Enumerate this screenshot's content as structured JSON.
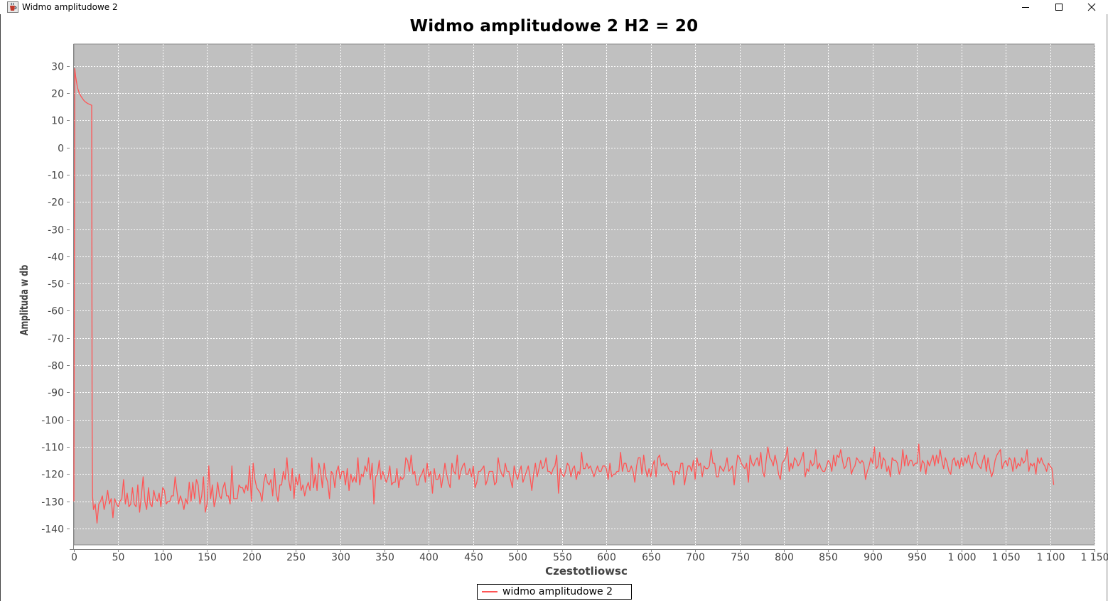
{
  "window": {
    "title": "Widmo amplitudowe 2",
    "icon": "java-cup-icon",
    "controls": [
      "minimize-icon",
      "maximize-icon",
      "close-icon"
    ]
  },
  "chart_data": {
    "type": "line",
    "title": "Widmo amplitudowe 2 H2 = 20",
    "xlabel": "Czestotliowsc",
    "ylabel": "Amplituda w db",
    "xlim": [
      0,
      1150
    ],
    "ylim": [
      -146,
      38
    ],
    "x_ticks": [
      0,
      50,
      100,
      150,
      200,
      250,
      300,
      350,
      400,
      450,
      500,
      550,
      600,
      650,
      700,
      750,
      800,
      850,
      900,
      950,
      1000,
      1050,
      1100,
      1150
    ],
    "x_tick_labels": [
      "0",
      "50",
      "100",
      "150",
      "200",
      "250",
      "300",
      "350",
      "400",
      "450",
      "500",
      "550",
      "600",
      "650",
      "700",
      "750",
      "800",
      "850",
      "900",
      "950",
      "1 000",
      "1 050",
      "1 100",
      "1 150"
    ],
    "y_ticks": [
      30,
      20,
      10,
      0,
      -10,
      -20,
      -30,
      -40,
      -50,
      -60,
      -70,
      -80,
      -90,
      -100,
      -110,
      -120,
      -130,
      -140
    ],
    "y_tick_labels": [
      "30",
      "20",
      "10",
      "0",
      "-10",
      "-20",
      "-30",
      "-40",
      "-50",
      "-60",
      "-70",
      "-80",
      "-90",
      "-100",
      "-110",
      "-120",
      "-130",
      "-140"
    ],
    "grid": true,
    "legend_position": "bottom-center",
    "plot_background": "#c0c0c0",
    "grid_color": "#ffffff",
    "series": [
      {
        "name": "widmo amplitudowe 2",
        "color": "#ff5555",
        "x": [
          0,
          1,
          2,
          3,
          4,
          6,
          8,
          10,
          12,
          14,
          16,
          18,
          20,
          20.5,
          21,
          22,
          24,
          26,
          28,
          30,
          32,
          34,
          36,
          38,
          40,
          42,
          44,
          46,
          48,
          50,
          52,
          54,
          56,
          58,
          60,
          62,
          64,
          66,
          68,
          70,
          72,
          74,
          76,
          78,
          80,
          82,
          84,
          86,
          88,
          90,
          92,
          94,
          96,
          98,
          100,
          102,
          104,
          106,
          108,
          110,
          112,
          114,
          116,
          118,
          120,
          122,
          124,
          126,
          128,
          130,
          132,
          134,
          136,
          138,
          140,
          142,
          144,
          146,
          148,
          150,
          152,
          154,
          156,
          158,
          160,
          162,
          164,
          166,
          168,
          170,
          172,
          174,
          176,
          178,
          180,
          182,
          184,
          186,
          188,
          190,
          192,
          194,
          196,
          198,
          200,
          202,
          204,
          206,
          208,
          210,
          212,
          214,
          216,
          218,
          220,
          222,
          224,
          226,
          228,
          230,
          232,
          234,
          236,
          238,
          240,
          242,
          244,
          246,
          248,
          250,
          252,
          254,
          256,
          258,
          260,
          262,
          264,
          266,
          268,
          270,
          272,
          274,
          276,
          278,
          280,
          282,
          284,
          286,
          288,
          290,
          292,
          294,
          296,
          298,
          300,
          302,
          304,
          306,
          308,
          310,
          312,
          314,
          316,
          318,
          320,
          322,
          324,
          326,
          328,
          330,
          332,
          334,
          336,
          338,
          340,
          342,
          344,
          346,
          348,
          350,
          352,
          354,
          356,
          358,
          360,
          362,
          364,
          366,
          368,
          370,
          372,
          374,
          376,
          378,
          380,
          382,
          384,
          386,
          388,
          390,
          392,
          394,
          396,
          398,
          400,
          402,
          404,
          406,
          408,
          410,
          412,
          414,
          416,
          418,
          420,
          422,
          424,
          426,
          428,
          430,
          432,
          434,
          436,
          438,
          440,
          442,
          444,
          446,
          448,
          450,
          452,
          454,
          456,
          458,
          460,
          462,
          464,
          466,
          468,
          470,
          472,
          474,
          476,
          478,
          480,
          482,
          484,
          486,
          488,
          490,
          492,
          494,
          496,
          498,
          500,
          502,
          504,
          506,
          508,
          510,
          512,
          514,
          516,
          518,
          520,
          522,
          524,
          526,
          528,
          530,
          532,
          534,
          536,
          538,
          540,
          542,
          544,
          546,
          548,
          550,
          552,
          554,
          556,
          558,
          560,
          562,
          564,
          566,
          568,
          570,
          572,
          574,
          576,
          578,
          580,
          582,
          584,
          586,
          588,
          590,
          592,
          594,
          596,
          598,
          600,
          602,
          604,
          606,
          608,
          610,
          612,
          614,
          616,
          618,
          620,
          622,
          624,
          626,
          628,
          630,
          632,
          634,
          636,
          638,
          640,
          642,
          644,
          646,
          648,
          650,
          652,
          654,
          656,
          658,
          660,
          662,
          664,
          666,
          668,
          670,
          672,
          674,
          676,
          678,
          680,
          682,
          684,
          686,
          688,
          690,
          692,
          694,
          696,
          698,
          700,
          702,
          704,
          706,
          708,
          710,
          712,
          714,
          716,
          718,
          720,
          722,
          724,
          726,
          728,
          730,
          732,
          734,
          736,
          738,
          740,
          742,
          744,
          746,
          748,
          750,
          752,
          754,
          756,
          758,
          760,
          762,
          764,
          766,
          768,
          770,
          772,
          774,
          776,
          778,
          780,
          782,
          784,
          786,
          788,
          790,
          792,
          794,
          796,
          798,
          800,
          802,
          804,
          806,
          808,
          810,
          812,
          814,
          816,
          818,
          820,
          822,
          824,
          826,
          828,
          830,
          832,
          834,
          836,
          838,
          840,
          842,
          844,
          846,
          848,
          850,
          852,
          854,
          856,
          858,
          860,
          862,
          864,
          866,
          868,
          870,
          872,
          874,
          876,
          878,
          880,
          882,
          884,
          886,
          888,
          890,
          892,
          894,
          896,
          898,
          900,
          902,
          904,
          906,
          908,
          910,
          912,
          914,
          916,
          918,
          920,
          922,
          924,
          926,
          928,
          930,
          932,
          934,
          936,
          938,
          940,
          942,
          944,
          946,
          948,
          950,
          952,
          954,
          956,
          958,
          960,
          962,
          964,
          966,
          968,
          970,
          972,
          974,
          976,
          978,
          980,
          982,
          984,
          986,
          988,
          990,
          992,
          994,
          996,
          998,
          1000,
          1002,
          1004,
          1006,
          1008,
          1010,
          1012,
          1014,
          1016,
          1018,
          1020,
          1022,
          1024,
          1026,
          1028,
          1030,
          1032,
          1034,
          1036,
          1038,
          1040,
          1042,
          1044,
          1046,
          1048,
          1050,
          1052,
          1054,
          1056,
          1058,
          1060,
          1062,
          1064,
          1066,
          1068,
          1070,
          1072,
          1074,
          1076,
          1078,
          1080,
          1082,
          1084,
          1086,
          1088,
          1090,
          1092,
          1094,
          1096,
          1098,
          1100,
          1102,
          1104
        ],
        "values": [
          -130,
          29,
          26,
          24,
          22,
          20,
          18.8,
          17.8,
          17,
          16.5,
          16.1,
          15.8,
          15.5,
          -100,
          -128,
          -133,
          -131,
          -138,
          -131,
          -130,
          -128,
          -133,
          -130,
          -126,
          -131,
          -129,
          -136,
          -129,
          -131,
          -132,
          -130,
          -129,
          -122,
          -131,
          -127,
          -132,
          -131,
          -125,
          -131,
          -132,
          -124,
          -134,
          -128,
          -121,
          -130,
          -133,
          -125,
          -131,
          -132,
          -126,
          -129,
          -130,
          -127,
          -132,
          -125,
          -126,
          -131,
          -130,
          -130,
          -128,
          -128,
          -121,
          -126,
          -131,
          -128,
          -130,
          -133,
          -129,
          -131,
          -123,
          -130,
          -123,
          -129,
          -122,
          -124,
          -131,
          -128,
          -121,
          -134,
          -131,
          -117,
          -129,
          -124,
          -132,
          -129,
          -123,
          -128,
          -129,
          -125,
          -123,
          -128,
          -128,
          -131,
          -117,
          -129,
          -129,
          -129,
          -124,
          -125,
          -125,
          -127,
          -124,
          -126,
          -117,
          -130,
          -116,
          -122,
          -125,
          -126,
          -127,
          -130,
          -123,
          -120,
          -123,
          -124,
          -122,
          -128,
          -118,
          -127,
          -130,
          -124,
          -124,
          -119,
          -122,
          -114,
          -122,
          -126,
          -118,
          -129,
          -121,
          -124,
          -120,
          -126,
          -124,
          -128,
          -125,
          -123,
          -126,
          -114,
          -125,
          -120,
          -126,
          -116,
          -119,
          -125,
          -116,
          -121,
          -123,
          -129,
          -119,
          -120,
          -125,
          -119,
          -117,
          -122,
          -119,
          -119,
          -124,
          -118,
          -126,
          -120,
          -123,
          -121,
          -123,
          -114,
          -124,
          -120,
          -121,
          -117,
          -119,
          -114,
          -122,
          -116,
          -131,
          -121,
          -120,
          -115,
          -122,
          -119,
          -121,
          -123,
          -121,
          -117,
          -124,
          -123,
          -123,
          -118,
          -125,
          -121,
          -122,
          -121,
          -114,
          -115,
          -119,
          -113,
          -120,
          -119,
          -124,
          -124,
          -121,
          -120,
          -118,
          -123,
          -116,
          -121,
          -119,
          -127,
          -118,
          -122,
          -122,
          -120,
          -125,
          -121,
          -116,
          -120,
          -123,
          -125,
          -116,
          -119,
          -120,
          -113,
          -122,
          -119,
          -117,
          -116,
          -120,
          -120,
          -118,
          -121,
          -117,
          -125,
          -123,
          -119,
          -119,
          -118,
          -117,
          -124,
          -122,
          -119,
          -119,
          -119,
          -124,
          -123,
          -114,
          -118,
          -120,
          -121,
          -116,
          -119,
          -119,
          -122,
          -125,
          -117,
          -120,
          -122,
          -119,
          -117,
          -123,
          -121,
          -119,
          -117,
          -121,
          -126,
          -120,
          -116,
          -121,
          -118,
          -115,
          -118,
          -117,
          -114,
          -119,
          -119,
          -120,
          -118,
          -117,
          -113,
          -127,
          -118,
          -120,
          -121,
          -119,
          -116,
          -117,
          -121,
          -118,
          -117,
          -122,
          -119,
          -120,
          -112,
          -118,
          -118,
          -116,
          -118,
          -117,
          -119,
          -121,
          -119,
          -117,
          -119,
          -119,
          -117,
          -117,
          -118,
          -122,
          -116,
          -121,
          -120,
          -120,
          -119,
          -119,
          -112,
          -119,
          -116,
          -116,
          -119,
          -119,
          -117,
          -119,
          -123,
          -117,
          -114,
          -114,
          -120,
          -113,
          -118,
          -121,
          -118,
          -121,
          -117,
          -115,
          -121,
          -114,
          -113,
          -117,
          -116,
          -117,
          -116,
          -118,
          -119,
          -119,
          -124,
          -119,
          -119,
          -120,
          -116,
          -116,
          -124,
          -120,
          -117,
          -117,
          -119,
          -115,
          -122,
          -114,
          -117,
          -116,
          -121,
          -117,
          -118,
          -118,
          -117,
          -111,
          -116,
          -116,
          -121,
          -121,
          -117,
          -118,
          -119,
          -117,
          -114,
          -119,
          -118,
          -117,
          -124,
          -118,
          -113,
          -114,
          -116,
          -117,
          -118,
          -116,
          -123,
          -113,
          -116,
          -117,
          -115,
          -114,
          -117,
          -112,
          -119,
          -121,
          -115,
          -110,
          -114,
          -115,
          -117,
          -113,
          -116,
          -120,
          -122,
          -116,
          -115,
          -114,
          -110,
          -119,
          -116,
          -118,
          -114,
          -115,
          -117,
          -116,
          -114,
          -112,
          -121,
          -118,
          -119,
          -115,
          -117,
          -116,
          -111,
          -118,
          -116,
          -118,
          -119,
          -119,
          -117,
          -115,
          -116,
          -119,
          -113,
          -117,
          -113,
          -114,
          -111,
          -115,
          -118,
          -117,
          -114,
          -114,
          -120,
          -118,
          -117,
          -114,
          -115,
          -116,
          -115,
          -116,
          -122,
          -119,
          -117,
          -114,
          -116,
          -110,
          -118,
          -117,
          -112,
          -118,
          -114,
          -115,
          -119,
          -117,
          -121,
          -114,
          -115,
          -115,
          -116,
          -120,
          -118,
          -111,
          -117,
          -113,
          -117,
          -115,
          -115,
          -117,
          -116,
          -116,
          -109,
          -119,
          -115,
          -116,
          -120,
          -115,
          -117,
          -115,
          -113,
          -117,
          -113,
          -116,
          -111,
          -115,
          -118,
          -114,
          -116,
          -119,
          -120,
          -115,
          -114,
          -117,
          -115,
          -118,
          -114,
          -117,
          -114,
          -116,
          -113,
          -116,
          -118,
          -114,
          -112,
          -116,
          -117,
          -118,
          -115,
          -113,
          -119,
          -114,
          -118,
          -121,
          -119,
          -115,
          -113,
          -112,
          -111,
          -118,
          -116,
          -115,
          -117,
          -114,
          -115,
          -119,
          -114,
          -118,
          -116,
          -117,
          -114,
          -116,
          -115,
          -111,
          -119,
          -116,
          -117,
          -116,
          -120,
          -114,
          -116,
          -114,
          -116,
          -117,
          -119,
          -116,
          -117,
          -118,
          -124
        ]
      }
    ]
  }
}
